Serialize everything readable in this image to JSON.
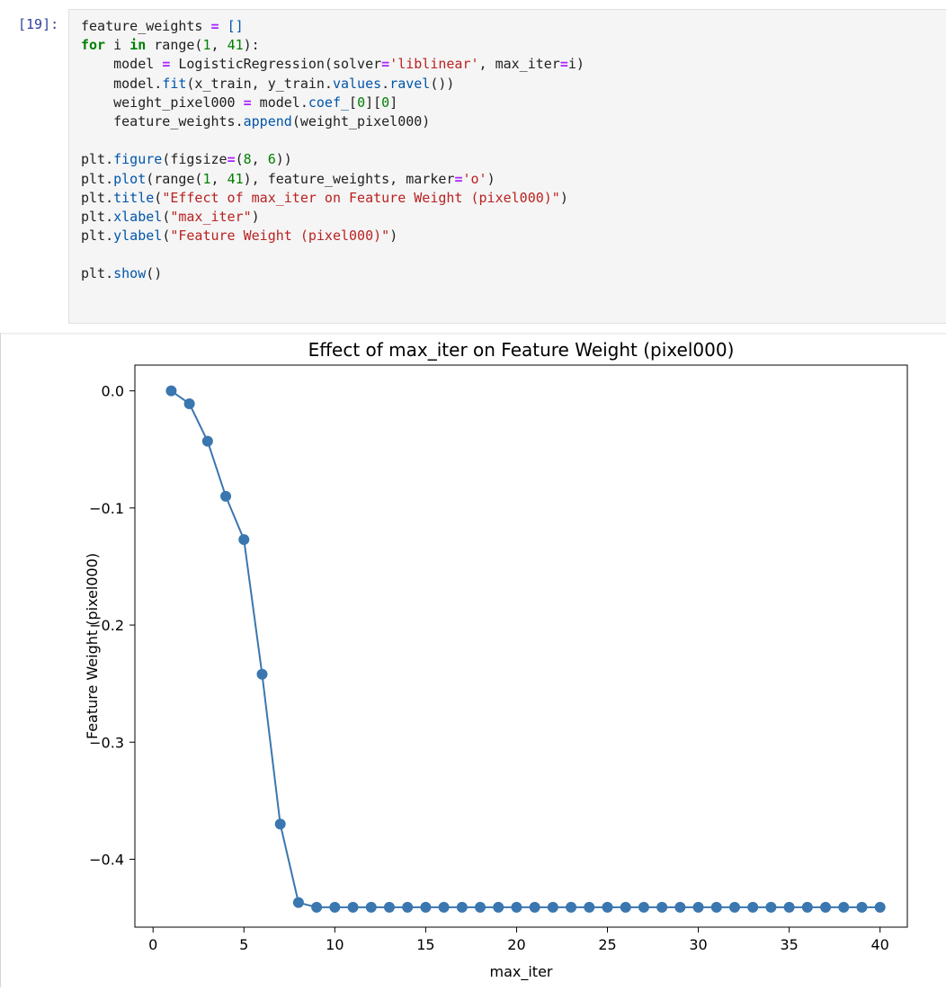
{
  "cell": {
    "prompt": "[19]:",
    "lines": [
      [
        {
          "t": "feature_weights "
        },
        {
          "t": "=",
          "c": "op"
        },
        {
          "t": " "
        },
        {
          "t": "[]",
          "c": "br"
        }
      ],
      [
        {
          "t": "for",
          "c": "kw"
        },
        {
          "t": " i "
        },
        {
          "t": "in",
          "c": "kw"
        },
        {
          "t": " range("
        },
        {
          "t": "1",
          "c": "num"
        },
        {
          "t": ", "
        },
        {
          "t": "41",
          "c": "num"
        },
        {
          "t": "):"
        }
      ],
      [
        {
          "t": "    model "
        },
        {
          "t": "=",
          "c": "op"
        },
        {
          "t": " LogisticRegression(solver"
        },
        {
          "t": "=",
          "c": "op"
        },
        {
          "t": "'liblinear'",
          "c": "str"
        },
        {
          "t": ", max_iter"
        },
        {
          "t": "=",
          "c": "op"
        },
        {
          "t": "i)"
        }
      ],
      [
        {
          "t": "    model."
        },
        {
          "t": "fit",
          "c": "fn"
        },
        {
          "t": "(x_train, y_train."
        },
        {
          "t": "values",
          "c": "fn"
        },
        {
          "t": "."
        },
        {
          "t": "ravel",
          "c": "fn"
        },
        {
          "t": "())"
        }
      ],
      [
        {
          "t": "    weight_pixel000 "
        },
        {
          "t": "=",
          "c": "op"
        },
        {
          "t": " model."
        },
        {
          "t": "coef_",
          "c": "fn"
        },
        {
          "t": "["
        },
        {
          "t": "0",
          "c": "num"
        },
        {
          "t": "]["
        },
        {
          "t": "0",
          "c": "num"
        },
        {
          "t": "]"
        }
      ],
      [
        {
          "t": "    feature_weights."
        },
        {
          "t": "append",
          "c": "fn"
        },
        {
          "t": "(weight_pixel000)"
        }
      ],
      [],
      [
        {
          "t": "plt."
        },
        {
          "t": "figure",
          "c": "fn"
        },
        {
          "t": "(figsize"
        },
        {
          "t": "=",
          "c": "op"
        },
        {
          "t": "("
        },
        {
          "t": "8",
          "c": "num"
        },
        {
          "t": ", "
        },
        {
          "t": "6",
          "c": "num"
        },
        {
          "t": "))"
        }
      ],
      [
        {
          "t": "plt."
        },
        {
          "t": "plot",
          "c": "fn"
        },
        {
          "t": "(range("
        },
        {
          "t": "1",
          "c": "num"
        },
        {
          "t": ", "
        },
        {
          "t": "41",
          "c": "num"
        },
        {
          "t": "), feature_weights, marker"
        },
        {
          "t": "=",
          "c": "op"
        },
        {
          "t": "'o'",
          "c": "str"
        },
        {
          "t": ")"
        }
      ],
      [
        {
          "t": "plt."
        },
        {
          "t": "title",
          "c": "fn"
        },
        {
          "t": "("
        },
        {
          "t": "\"Effect of max_iter on Feature Weight (pixel000)\"",
          "c": "str"
        },
        {
          "t": ")"
        }
      ],
      [
        {
          "t": "plt."
        },
        {
          "t": "xlabel",
          "c": "fn"
        },
        {
          "t": "("
        },
        {
          "t": "\"max_iter\"",
          "c": "str"
        },
        {
          "t": ")"
        }
      ],
      [
        {
          "t": "plt."
        },
        {
          "t": "ylabel",
          "c": "fn"
        },
        {
          "t": "("
        },
        {
          "t": "\"Feature Weight (pixel000)\"",
          "c": "str"
        },
        {
          "t": ")"
        }
      ],
      [],
      [
        {
          "t": "plt."
        },
        {
          "t": "show",
          "c": "fn"
        },
        {
          "t": "()"
        }
      ]
    ]
  },
  "chart_data": {
    "type": "line",
    "title": "Effect of max_iter on Feature Weight (pixel000)",
    "xlabel": "max_iter",
    "ylabel": "Feature Weight (pixel000)",
    "xlim": [
      -1,
      41.5
    ],
    "ylim": [
      -0.458,
      0.022
    ],
    "xticks": [
      0,
      5,
      10,
      15,
      20,
      25,
      30,
      35,
      40
    ],
    "yticks": [
      0.0,
      -0.1,
      -0.2,
      -0.3,
      -0.4
    ],
    "ytick_labels": [
      "0.0",
      "−0.1",
      "−0.2",
      "−0.3",
      "−0.4"
    ],
    "marker": "o",
    "color": "#3a76af",
    "grid": false,
    "x": [
      1,
      2,
      3,
      4,
      5,
      6,
      7,
      8,
      9,
      10,
      11,
      12,
      13,
      14,
      15,
      16,
      17,
      18,
      19,
      20,
      21,
      22,
      23,
      24,
      25,
      26,
      27,
      28,
      29,
      30,
      31,
      32,
      33,
      34,
      35,
      36,
      37,
      38,
      39,
      40
    ],
    "series": [
      {
        "values": [
          0.0,
          -0.011,
          -0.043,
          -0.09,
          -0.127,
          -0.242,
          -0.37,
          -0.437,
          -0.441,
          -0.441,
          -0.441,
          -0.441,
          -0.441,
          -0.441,
          -0.441,
          -0.441,
          -0.441,
          -0.441,
          -0.441,
          -0.441,
          -0.441,
          -0.441,
          -0.441,
          -0.441,
          -0.441,
          -0.441,
          -0.441,
          -0.441,
          -0.441,
          -0.441,
          -0.441,
          -0.441,
          -0.441,
          -0.441,
          -0.441,
          -0.441,
          -0.441,
          -0.441,
          -0.441,
          -0.441
        ]
      }
    ]
  }
}
